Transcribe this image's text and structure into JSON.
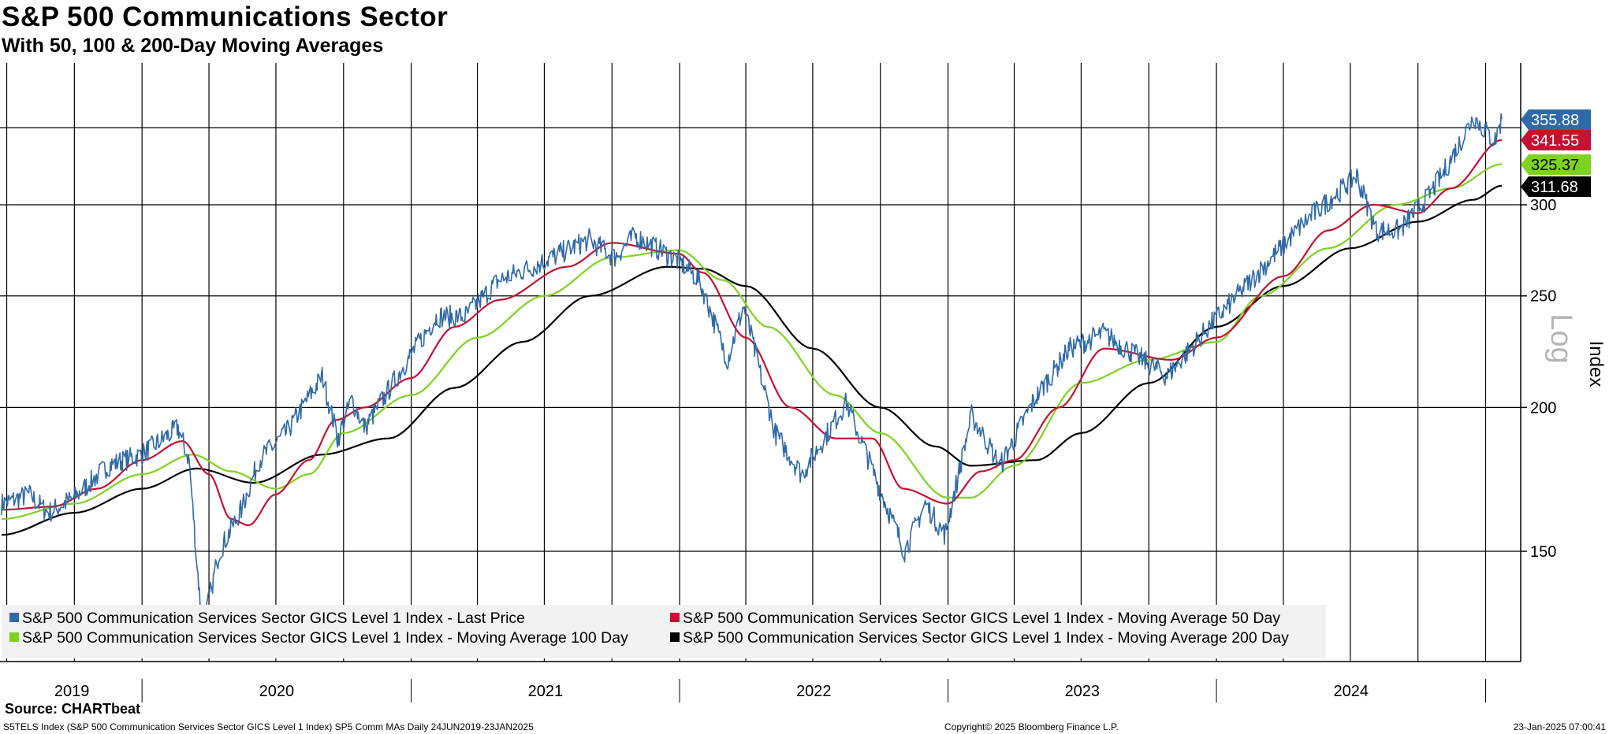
{
  "title": "S&P 500 Communications Sector",
  "subtitle": "With 50, 100 & 200-Day Moving Averages",
  "source": "Source: CHARTbeat",
  "footer": {
    "left": "S5TELS Index (S&P 500 Communication Services Sector GICS Level 1 Index) SP5 Comm MAs  Daily 24JUN2019-23JAN2025",
    "center": "Copyright© 2025 Bloomberg Finance L.P.",
    "right": "23-Jan-2025 07:00:41"
  },
  "chart_data": {
    "type": "line",
    "scale": "log",
    "ylabel": "Index",
    "scale_label": "Log",
    "ylim": [
      116,
      380
    ],
    "yticks": [
      150,
      200,
      250,
      300
    ],
    "x_range": [
      "2019-06-24",
      "2025-01-23"
    ],
    "x_year_labels": [
      "2019",
      "2020",
      "2021",
      "2022",
      "2023",
      "2024"
    ],
    "grid": true,
    "legend_position": "bottom-left",
    "colors": {
      "last_price": "#2e6aa7",
      "ma50": "#c41233",
      "ma100": "#7ed321",
      "ma200": "#000000"
    },
    "series": [
      {
        "key": "last_price",
        "name": "S&P 500 Communication Services Sector GICS Level 1 Index - Last Price",
        "last_value": "355.88",
        "points": [
          [
            "2019-06-24",
            165
          ],
          [
            "2019-08-01",
            168
          ],
          [
            "2019-08-26",
            162
          ],
          [
            "2019-10-01",
            167
          ],
          [
            "2019-11-15",
            178
          ],
          [
            "2019-12-31",
            182
          ],
          [
            "2020-01-20",
            186
          ],
          [
            "2020-02-19",
            192
          ],
          [
            "2020-03-05",
            180
          ],
          [
            "2020-03-23",
            128
          ],
          [
            "2020-04-15",
            150
          ],
          [
            "2020-05-15",
            163
          ],
          [
            "2020-06-08",
            180
          ],
          [
            "2020-07-15",
            190
          ],
          [
            "2020-09-02",
            213
          ],
          [
            "2020-09-23",
            188
          ],
          [
            "2020-10-12",
            203
          ],
          [
            "2020-10-30",
            192
          ],
          [
            "2020-12-31",
            222
          ],
          [
            "2021-02-05",
            240
          ],
          [
            "2021-03-15",
            240
          ],
          [
            "2021-04-30",
            258
          ],
          [
            "2021-06-15",
            265
          ],
          [
            "2021-08-31",
            280
          ],
          [
            "2021-10-04",
            270
          ],
          [
            "2021-11-01",
            282
          ],
          [
            "2021-12-31",
            268
          ],
          [
            "2022-01-28",
            258
          ],
          [
            "2022-03-07",
            220
          ],
          [
            "2022-03-29",
            245
          ],
          [
            "2022-05-11",
            190
          ],
          [
            "2022-06-16",
            175
          ],
          [
            "2022-08-16",
            202
          ],
          [
            "2022-09-30",
            170
          ],
          [
            "2022-11-03",
            150
          ],
          [
            "2022-12-01",
            165
          ],
          [
            "2022-12-28",
            155
          ],
          [
            "2023-02-02",
            197
          ],
          [
            "2023-03-13",
            178
          ],
          [
            "2023-04-28",
            203
          ],
          [
            "2023-06-15",
            225
          ],
          [
            "2023-07-31",
            232
          ],
          [
            "2023-10-26",
            213
          ],
          [
            "2023-12-29",
            238
          ],
          [
            "2024-03-28",
            275
          ],
          [
            "2024-04-30",
            290
          ],
          [
            "2024-07-10",
            318
          ],
          [
            "2024-08-05",
            285
          ],
          [
            "2024-09-06",
            285
          ],
          [
            "2024-10-15",
            305
          ],
          [
            "2024-11-05",
            320
          ],
          [
            "2024-12-16",
            358
          ],
          [
            "2025-01-13",
            340
          ],
          [
            "2025-01-23",
            356
          ]
        ]
      },
      {
        "key": "ma50",
        "name": "S&P 500 Communication Services Sector GICS Level 1 Index - Moving Average 50 Day",
        "last_value": "341.55",
        "points": [
          [
            "2019-06-24",
            163
          ],
          [
            "2019-09-01",
            164
          ],
          [
            "2019-11-01",
            170
          ],
          [
            "2020-01-01",
            180
          ],
          [
            "2020-02-25",
            187
          ],
          [
            "2020-04-01",
            175
          ],
          [
            "2020-05-01",
            160
          ],
          [
            "2020-05-25",
            158
          ],
          [
            "2020-06-30",
            168
          ],
          [
            "2020-08-15",
            180
          ],
          [
            "2020-09-20",
            195
          ],
          [
            "2020-10-30",
            200
          ],
          [
            "2020-12-31",
            212
          ],
          [
            "2021-03-01",
            235
          ],
          [
            "2021-05-01",
            248
          ],
          [
            "2021-08-01",
            265
          ],
          [
            "2021-10-01",
            278
          ],
          [
            "2021-12-31",
            272
          ],
          [
            "2022-02-01",
            262
          ],
          [
            "2022-04-01",
            230
          ],
          [
            "2022-06-01",
            200
          ],
          [
            "2022-08-01",
            188
          ],
          [
            "2022-09-20",
            188
          ],
          [
            "2022-11-01",
            170
          ],
          [
            "2022-12-31",
            165
          ],
          [
            "2023-02-15",
            176
          ],
          [
            "2023-04-01",
            180
          ],
          [
            "2023-06-01",
            200
          ],
          [
            "2023-08-01",
            225
          ],
          [
            "2023-11-01",
            220
          ],
          [
            "2024-01-01",
            230
          ],
          [
            "2024-04-01",
            260
          ],
          [
            "2024-06-01",
            285
          ],
          [
            "2024-08-01",
            300
          ],
          [
            "2024-10-01",
            295
          ],
          [
            "2024-11-15",
            310
          ],
          [
            "2025-01-23",
            341.55
          ]
        ]
      },
      {
        "key": "ma100",
        "name": "S&P 500 Communication Services Sector GICS Level 1 Index - Moving Average 100 Day",
        "last_value": "325.37",
        "points": [
          [
            "2019-06-24",
            160
          ],
          [
            "2019-10-01",
            165
          ],
          [
            "2020-01-01",
            175
          ],
          [
            "2020-03-10",
            182
          ],
          [
            "2020-05-01",
            176
          ],
          [
            "2020-07-01",
            170
          ],
          [
            "2020-08-15",
            175
          ],
          [
            "2020-10-01",
            190
          ],
          [
            "2021-01-01",
            205
          ],
          [
            "2021-04-01",
            230
          ],
          [
            "2021-07-01",
            250
          ],
          [
            "2021-10-01",
            270
          ],
          [
            "2021-12-31",
            274
          ],
          [
            "2022-03-01",
            258
          ],
          [
            "2022-05-01",
            235
          ],
          [
            "2022-08-01",
            205
          ],
          [
            "2022-10-01",
            190
          ],
          [
            "2022-12-31",
            167
          ],
          [
            "2023-02-01",
            167
          ],
          [
            "2023-04-01",
            178
          ],
          [
            "2023-07-01",
            210
          ],
          [
            "2023-10-01",
            220
          ],
          [
            "2024-01-01",
            228
          ],
          [
            "2024-03-01",
            250
          ],
          [
            "2024-06-01",
            275
          ],
          [
            "2024-09-01",
            300
          ],
          [
            "2024-11-15",
            310
          ],
          [
            "2025-01-23",
            325.37
          ]
        ]
      },
      {
        "key": "ma200",
        "name": "S&P 500 Communication Services Sector GICS Level 1 Index - Moving Average 200 Day",
        "last_value": "311.68",
        "points": [
          [
            "2019-06-24",
            155
          ],
          [
            "2019-10-01",
            162
          ],
          [
            "2020-01-01",
            170
          ],
          [
            "2020-03-15",
            177
          ],
          [
            "2020-06-01",
            172
          ],
          [
            "2020-09-01",
            182
          ],
          [
            "2020-12-01",
            188
          ],
          [
            "2021-03-01",
            208
          ],
          [
            "2021-06-01",
            228
          ],
          [
            "2021-09-01",
            250
          ],
          [
            "2021-12-15",
            265
          ],
          [
            "2022-02-01",
            264
          ],
          [
            "2022-04-01",
            255
          ],
          [
            "2022-07-01",
            225
          ],
          [
            "2022-10-01",
            200
          ],
          [
            "2022-12-15",
            185
          ],
          [
            "2023-02-01",
            178
          ],
          [
            "2023-05-01",
            180
          ],
          [
            "2023-07-01",
            190
          ],
          [
            "2023-10-01",
            210
          ],
          [
            "2024-01-01",
            235
          ],
          [
            "2024-04-01",
            255
          ],
          [
            "2024-07-01",
            275
          ],
          [
            "2024-10-01",
            290
          ],
          [
            "2024-12-15",
            303
          ],
          [
            "2025-01-23",
            311.68
          ]
        ]
      }
    ]
  }
}
